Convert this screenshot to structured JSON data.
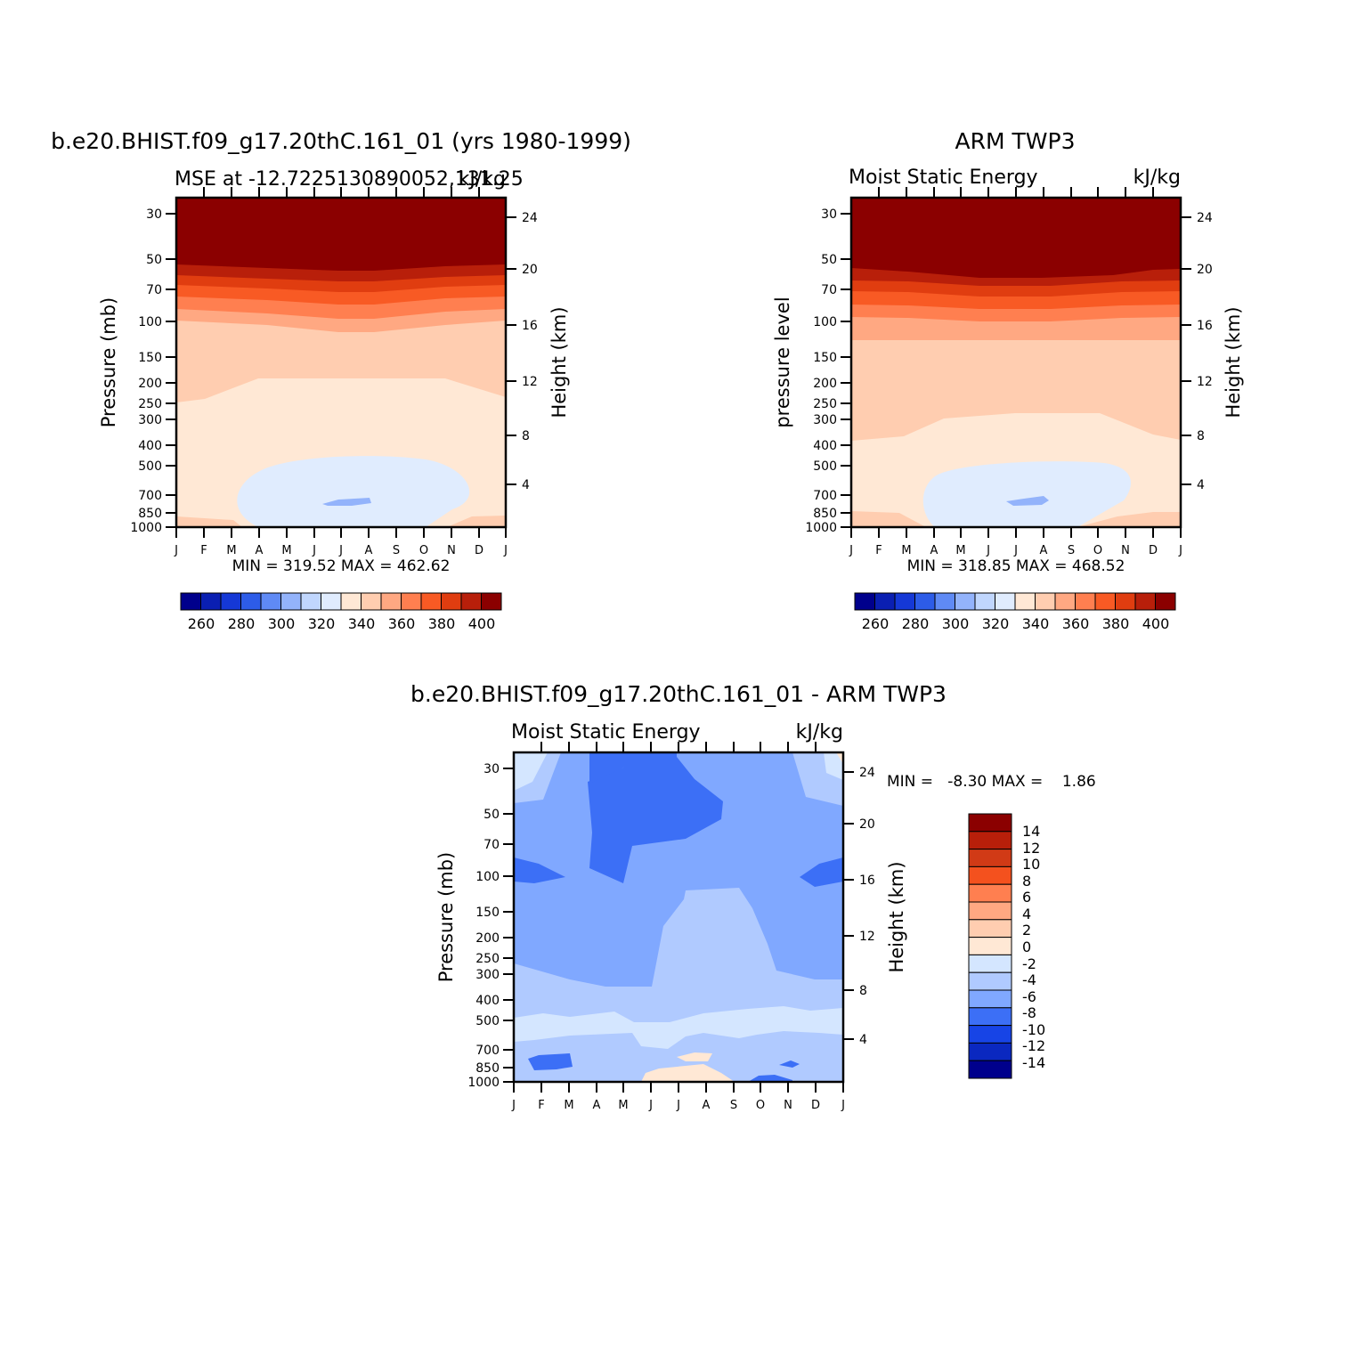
{
  "chart_data": [
    {
      "type": "heatmap",
      "panel": "model",
      "title": "b.e20.BHIST.f09_g17.20thC.161_01 (yrs 1980-1999)",
      "left_string": "MSE at -12.7225130890052,131.25",
      "right_string": "kJ/kg",
      "ylabel": "Pressure (mb)",
      "ylabel_right": "Height (km)",
      "yticks": [
        "30",
        "50",
        "70",
        "100",
        "150",
        "200",
        "250",
        "300",
        "400",
        "500",
        "700",
        "850",
        "1000"
      ],
      "yticks_right": [
        "24",
        "20",
        "16",
        "12",
        "8",
        "4"
      ],
      "xticks": [
        "J",
        "F",
        "M",
        "A",
        "M",
        "J",
        "J",
        "A",
        "S",
        "O",
        "N",
        "D",
        "J"
      ],
      "min": 319.52,
      "max": 462.62,
      "stats_text": "MIN = 319.52 MAX = 462.62",
      "colorbar_ticks": [
        "260",
        "280",
        "300",
        "320",
        "340",
        "360",
        "380",
        "400"
      ],
      "contour_levels": [
        250,
        260,
        270,
        280,
        290,
        300,
        310,
        320,
        330,
        340,
        350,
        360,
        370,
        380,
        390,
        400
      ]
    },
    {
      "type": "heatmap",
      "panel": "observations",
      "title": "ARM TWP3",
      "left_string": "Moist Static Energy",
      "right_string": "kJ/kg",
      "ylabel": "pressure level",
      "ylabel_right": "Height (km)",
      "yticks": [
        "30",
        "50",
        "70",
        "100",
        "150",
        "200",
        "250",
        "300",
        "400",
        "500",
        "700",
        "850",
        "1000"
      ],
      "yticks_right": [
        "24",
        "20",
        "16",
        "12",
        "8",
        "4"
      ],
      "xticks": [
        "J",
        "F",
        "M",
        "A",
        "M",
        "J",
        "J",
        "A",
        "S",
        "O",
        "N",
        "D",
        "J"
      ],
      "min": 318.85,
      "max": 468.52,
      "stats_text": "MIN = 318.85 MAX = 468.52",
      "colorbar_ticks": [
        "260",
        "280",
        "300",
        "320",
        "340",
        "360",
        "380",
        "400"
      ],
      "contour_levels": [
        250,
        260,
        270,
        280,
        290,
        300,
        310,
        320,
        330,
        340,
        350,
        360,
        370,
        380,
        390,
        400
      ]
    },
    {
      "type": "heatmap",
      "panel": "difference",
      "title": "b.e20.BHIST.f09_g17.20thC.161_01 - ARM TWP3",
      "left_string": "Moist Static Energy",
      "right_string": "kJ/kg",
      "ylabel": "Pressure (mb)",
      "ylabel_right": "Height (km)",
      "yticks": [
        "30",
        "50",
        "70",
        "100",
        "150",
        "200",
        "250",
        "300",
        "400",
        "500",
        "700",
        "850",
        "1000"
      ],
      "yticks_right": [
        "24",
        "20",
        "16",
        "12",
        "8",
        "4"
      ],
      "xticks": [
        "J",
        "F",
        "M",
        "A",
        "M",
        "J",
        "J",
        "A",
        "S",
        "O",
        "N",
        "D",
        "J"
      ],
      "min": -8.3,
      "max": 1.86,
      "stats_text": "MIN =   -8.30 MAX =    1.86",
      "colorbar_ticks": [
        "14",
        "12",
        "10",
        "8",
        "6",
        "4",
        "2",
        "0",
        "-2",
        "-4",
        "-6",
        "-8",
        "-10",
        "-12",
        "-14"
      ],
      "contour_levels": [
        -14,
        -12,
        -10,
        -8,
        -6,
        -4,
        -2,
        0,
        2,
        4,
        6,
        8,
        10,
        12,
        14
      ]
    }
  ],
  "colors": {
    "level_colors": [
      "#00008c",
      "#0a1fb2",
      "#1538d6",
      "#2d5ce8",
      "#5f8af5",
      "#93b3fb",
      "#c0d6fd",
      "#e0ecfe",
      "#ffe8d5",
      "#ffcdb0",
      "#ffa882",
      "#ff7f50",
      "#f85a24",
      "#e03d10",
      "#b81f0a",
      "#8b0000"
    ],
    "diff_colors": [
      "#00008c",
      "#0a28c0",
      "#1744e6",
      "#3c6ff6",
      "#80a8ff",
      "#b0caff",
      "#d4e6ff",
      "#ffe8d5",
      "#ffcdb0",
      "#ffa882",
      "#ff7f50",
      "#f4511e",
      "#d13a16",
      "#b81f0a",
      "#8b0000"
    ]
  }
}
